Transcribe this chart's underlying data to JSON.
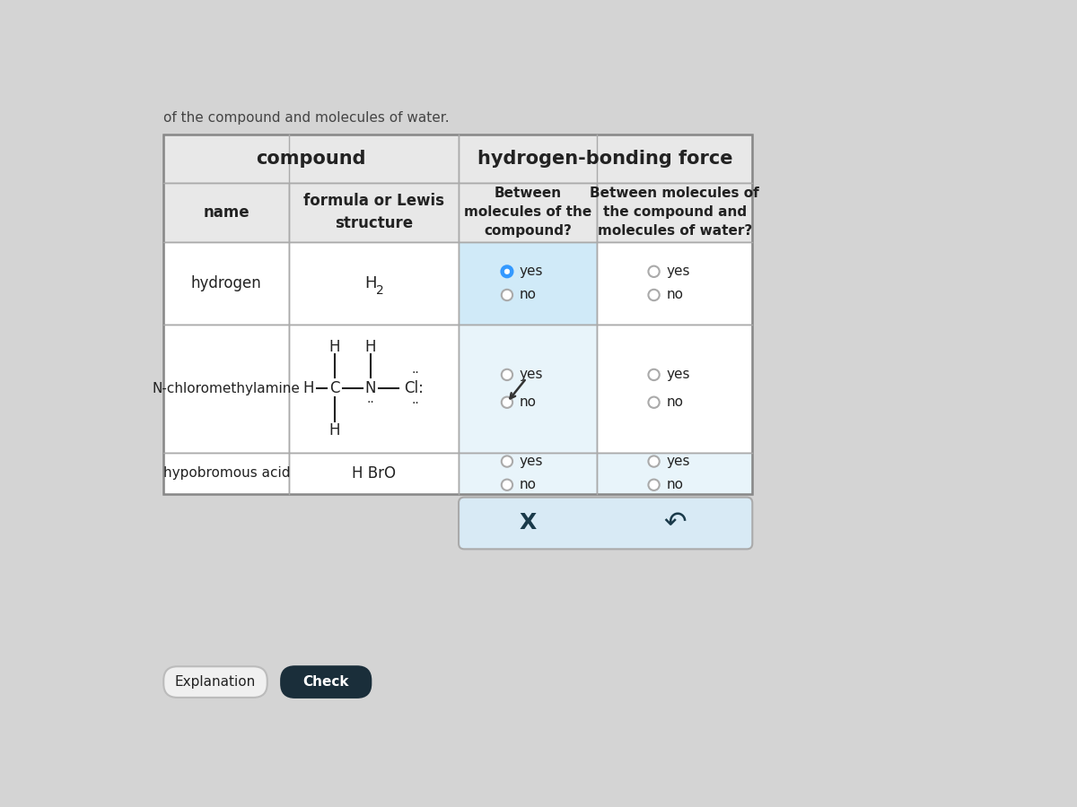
{
  "bg_color": "#d4d4d4",
  "table_border_color": "#aaaaaa",
  "header_bg": "#e8e8e8",
  "cell_bg_white": "#ffffff",
  "cell_bg_blue_selected": "#d0eaf8",
  "cell_bg_blue_light": "#e8f4fa",
  "top_text": "of the compound and molecules of water.",
  "header1_text": "compound",
  "header2_text": "hydrogen-bonding force",
  "subheader_name": "name",
  "subheader_formula": "formula or Lewis\nstructure",
  "subheader_between": "Between\nmolecules of the\ncompound?",
  "subheader_water": "Between molecules of\nthe compound and\nmolecules of water?",
  "row1_name": "hydrogen",
  "row2_name": "N-chloromethylamine",
  "row3_name": "hypobromous acid",
  "row3_formula": "H BrO",
  "bottom_panel_bg": "#d8eaf5",
  "bottom_panel_border": "#aaaaaa",
  "x_symbol": "X",
  "undo_symbol": "↶",
  "explanation_btn": "Explanation",
  "check_btn": "Check",
  "radio_selected_color": "#3399ff",
  "radio_unselected_edge": "#aaaaaa",
  "text_color": "#222222"
}
